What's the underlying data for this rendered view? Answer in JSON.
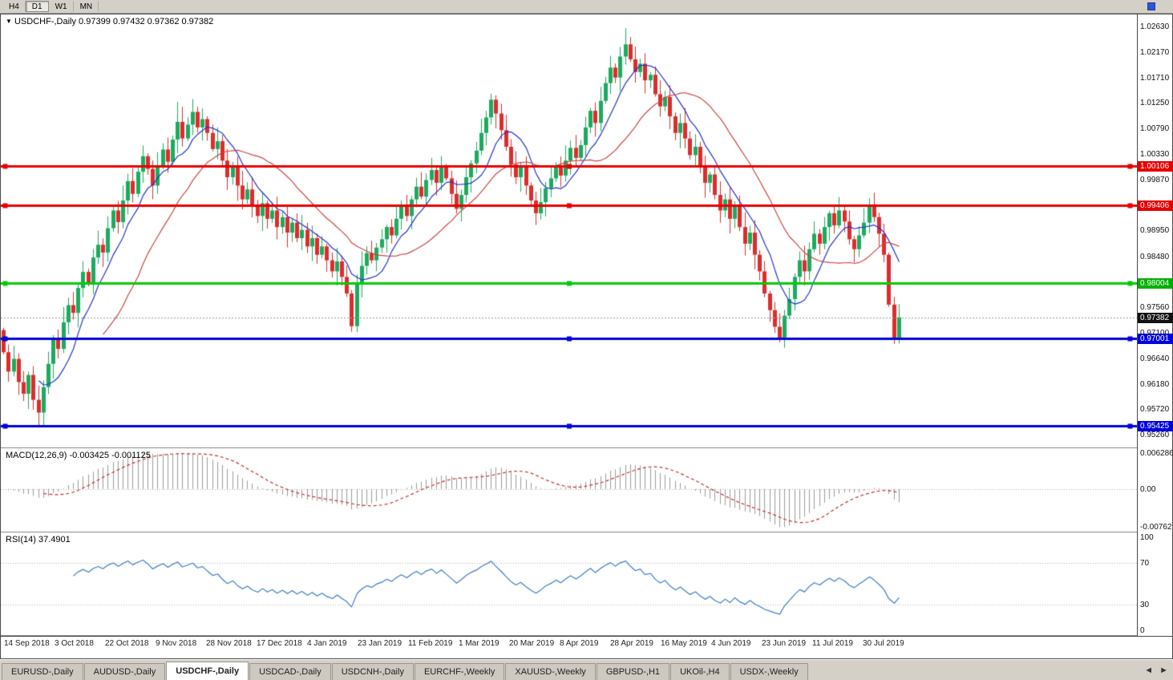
{
  "toolbar": {
    "timeframes": [
      {
        "label": "H4",
        "active": false
      },
      {
        "label": "D1",
        "active": true
      },
      {
        "label": "W1",
        "active": false
      },
      {
        "label": "MN",
        "active": false
      }
    ]
  },
  "price_pane": {
    "dropdown_icon": "▼",
    "symbol_label": "USDCHF-,Daily",
    "ohlc_label": "0.97399 0.97432 0.97362 0.97382",
    "scale_labels": [
      "1.02630",
      "1.02170",
      "1.01710",
      "1.01250",
      "1.00790",
      "1.00330",
      "0.99870",
      "0.98950",
      "0.98480",
      "0.97560",
      "0.97100",
      "0.96640",
      "0.96180",
      "0.95720",
      "0.95260"
    ],
    "badges": [
      {
        "text": "1.00106",
        "price": 1.00106,
        "color": "#e60000"
      },
      {
        "text": "0.99406",
        "price": 0.99406,
        "color": "#e60000"
      },
      {
        "text": "0.98004",
        "price": 0.98004,
        "color": "#00b000"
      },
      {
        "text": "0.97382",
        "price": 0.97382,
        "color": "#111111"
      },
      {
        "text": "0.97001",
        "price": 0.97001,
        "color": "#0000dd"
      },
      {
        "text": "0.95425",
        "price": 0.95425,
        "color": "#0000dd"
      }
    ]
  },
  "macd": {
    "label": "MACD(12,26,9)",
    "values_label": "-0.003425 -0.001125",
    "fast": 12,
    "slow": 26,
    "signal": 9,
    "scale_labels": [
      "0.006286",
      "0.00",
      "-0.00762"
    ],
    "bar_color": "#9b9b9b",
    "signal_color": "#c43030"
  },
  "rsi": {
    "label": "RSI(14)",
    "value_label": "37.4901",
    "period": 14,
    "levels": [
      70,
      30
    ],
    "scale_labels": [
      "100",
      "70",
      "30",
      "0"
    ],
    "line_color": "#3f7cc4"
  },
  "chart_data": {
    "type": "candlestick",
    "symbol": "USDCHF",
    "timeframe": "Daily",
    "ylim": [
      0.9503,
      1.0285
    ],
    "x_labels": [
      "14 Sep 2018",
      "3 Oct 2018",
      "22 Oct 2018",
      "9 Nov 2018",
      "28 Nov 2018",
      "17 Dec 2018",
      "4 Jan 2019",
      "23 Jan 2019",
      "11 Feb 2019",
      "1 Mar 2019",
      "20 Mar 2019",
      "8 Apr 2019",
      "28 Apr 2019",
      "16 May 2019",
      "4 Jun 2019",
      "23 Jun 2019",
      "11 Jul 2019",
      "30 Jul 2019"
    ],
    "closes": [
      0.9675,
      0.964,
      0.9663,
      0.9621,
      0.96,
      0.9634,
      0.9589,
      0.9566,
      0.9612,
      0.9654,
      0.9698,
      0.9681,
      0.9729,
      0.976,
      0.9746,
      0.9791,
      0.982,
      0.9801,
      0.9846,
      0.9869,
      0.9855,
      0.9899,
      0.9931,
      0.991,
      0.9949,
      0.9984,
      0.9961,
      1.0001,
      1.0029,
      1.0006,
      0.9976,
      1.0011,
      1.0041,
      1.0019,
      1.0059,
      1.0091,
      1.0061,
      1.0086,
      1.0109,
      1.0081,
      1.0096,
      1.0071,
      1.0042,
      1.0056,
      1.0021,
      0.9991,
      1.0012,
      0.9976,
      0.9951,
      0.9969,
      0.9941,
      0.9921,
      0.9944,
      0.9916,
      0.9931,
      0.9901,
      0.9919,
      0.9891,
      0.9909,
      0.9881,
      0.9896,
      0.9866,
      0.9881,
      0.9851,
      0.9866,
      0.9841,
      0.9821,
      0.9839,
      0.9811,
      0.9781,
      0.9722,
      0.9799,
      0.9831,
      0.9854,
      0.9841,
      0.9864,
      0.9879,
      0.9901,
      0.9886,
      0.9916,
      0.9939,
      0.9921,
      0.9951,
      0.9974,
      0.9956,
      0.9986,
      1.0004,
      0.9981,
      1.0011,
      0.9989,
      0.9961,
      0.9934,
      0.9959,
      0.9991,
      1.0016,
      1.0039,
      1.0071,
      1.0099,
      1.0131,
      1.0106,
      1.0076,
      1.0046,
      1.0014,
      0.9991,
      1.0009,
      0.9976,
      0.9949,
      0.9926,
      0.9946,
      0.9971,
      0.9989,
      1.0011,
      0.9994,
      1.0021,
      1.0044,
      1.0026,
      1.0049,
      1.0081,
      1.0111,
      1.0089,
      1.0129,
      1.0161,
      1.0189,
      1.0171,
      1.0209,
      1.0231,
      1.0204,
      1.0181,
      1.0196,
      1.0166,
      1.0176,
      1.0141,
      1.0119,
      1.0136,
      1.0101,
      1.0071,
      1.0089,
      1.0061,
      1.0031,
      1.0046,
      1.0011,
      0.9981,
      0.9996,
      0.9959,
      0.9931,
      0.9951,
      0.9916,
      0.9941,
      0.9901,
      0.9871,
      0.9891,
      0.9851,
      0.9821,
      0.9781,
      0.9751,
      0.9721,
      0.9699,
      0.9741,
      0.9771,
      0.9811,
      0.9841,
      0.9821,
      0.9861,
      0.9889,
      0.9871,
      0.9901,
      0.9926,
      0.9904,
      0.9931,
      0.9911,
      0.9879,
      0.9861,
      0.9886,
      0.9909,
      0.9941,
      0.9919,
      0.9889,
      0.9851,
      0.9761,
      0.9699,
      0.9738
    ],
    "low_overrides": {
      "7": 0.9543,
      "70": 0.9712,
      "156": 0.9693,
      "179": 0.969
    },
    "high_overrides": {
      "35": 1.0127,
      "98": 1.0142,
      "125": 1.026
    },
    "current_price": 0.97382,
    "up_color": "#1cab5e",
    "down_color": "#dd2c2c",
    "ma_fast_period": 8,
    "ma_fast_color": "#2233cc",
    "ma_slow_period": 21,
    "ma_slow_color": "#cc4444",
    "sr_lines": [
      {
        "price": 1.00106,
        "color": "#e60000",
        "width": 3
      },
      {
        "price": 0.99406,
        "color": "#e60000",
        "width": 3
      },
      {
        "price": 0.98004,
        "color": "#00cc00",
        "width": 3
      },
      {
        "price": 0.97001,
        "color": "#0000dd",
        "width": 3
      },
      {
        "price": 0.95425,
        "color": "#0000dd",
        "width": 3
      }
    ]
  },
  "tab_bar": {
    "tabs": [
      "EURUSD-,Daily",
      "AUDUSD-,Daily",
      "USDCHF-,Daily",
      "USDCAD-,Daily",
      "USDCNH-,Daily",
      "EURCHF-,Weekly",
      "XAUUSD-,Weekly",
      "GBPUSD-,H1",
      "UKOil-,H4",
      "USDX-,Weekly"
    ],
    "active_index": 2,
    "scroll_left_icon": "◄",
    "scroll_right_icon": "►"
  }
}
